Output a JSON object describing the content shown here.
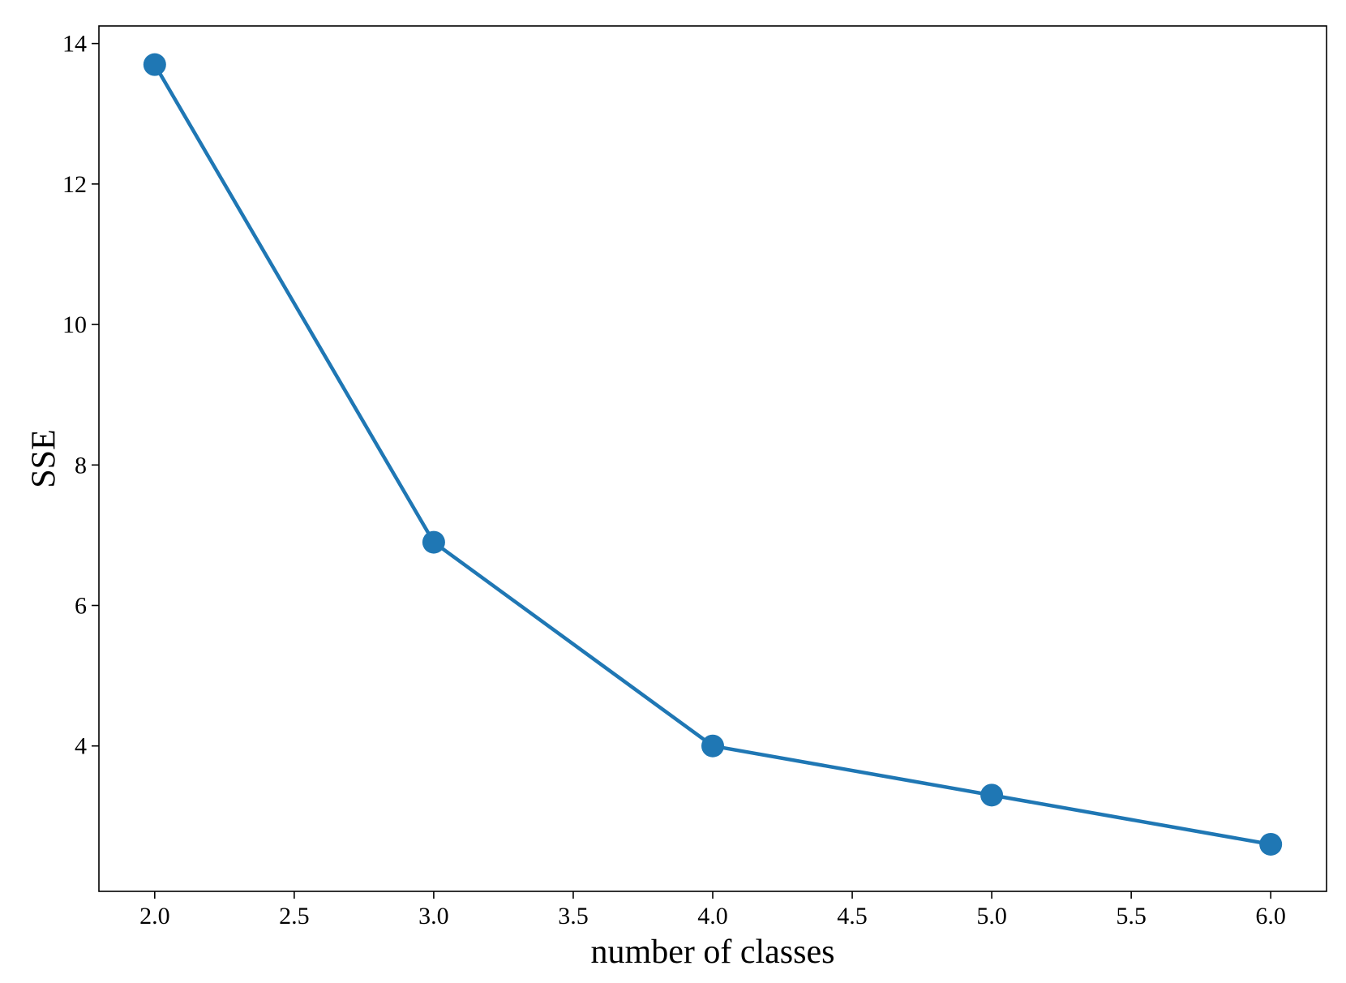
{
  "chart_data": {
    "type": "line",
    "title": "",
    "xlabel": "number of classes",
    "ylabel": "SSE",
    "x": [
      2,
      3,
      4,
      5,
      6
    ],
    "series": [
      {
        "values": [
          13.7,
          6.9,
          4.0,
          3.3,
          2.6
        ],
        "color": "#1f77b4",
        "marker": "circle"
      }
    ],
    "xlim": [
      1.8,
      6.2
    ],
    "ylim": [
      1.93,
      14.25
    ],
    "xticks": [
      2.0,
      2.5,
      3.0,
      3.5,
      4.0,
      4.5,
      5.0,
      5.5,
      6.0
    ],
    "xtick_labels": [
      "2.0",
      "2.5",
      "3.0",
      "3.5",
      "4.0",
      "4.5",
      "5.0",
      "5.5",
      "6.0"
    ],
    "yticks": [
      4,
      6,
      8,
      10,
      12,
      14
    ],
    "ytick_labels": [
      "4",
      "6",
      "8",
      "10",
      "12",
      "14"
    ],
    "grid": false,
    "legend": "none"
  }
}
